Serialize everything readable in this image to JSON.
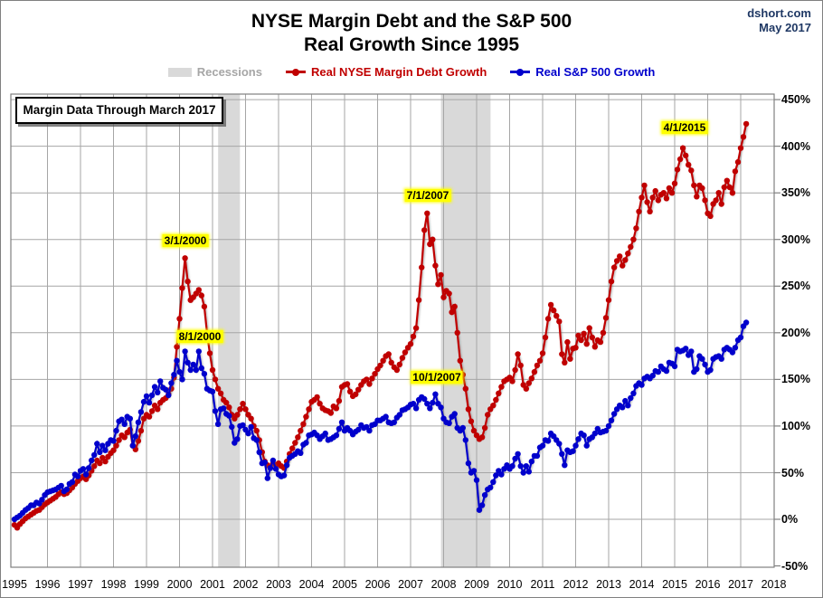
{
  "header": {
    "title_line1": "NYSE Margin Debt and the S&P 500",
    "title_line2": "Real Growth Since 1995",
    "source": "dshort.com",
    "date": "May 2017"
  },
  "annotation_box": "Margin Data Through March 2017",
  "legend": {
    "recessions": {
      "label": "Recessions",
      "swatch_color": "#D9D9D9",
      "text_color": "#A6A6A6"
    },
    "margin_debt": {
      "label": "Real NYSE Margin Debt Growth",
      "color": "#C00000"
    },
    "sp500": {
      "label": "Real S&P 500 Growth",
      "color": "#0000CC"
    }
  },
  "chart_data": {
    "type": "line",
    "title": "NYSE Margin Debt and the S&P 500 Real Growth Since 1995",
    "x_unit": "month",
    "x_start": "1995-01",
    "x_end": "2017-03",
    "ylim": [
      -50,
      450
    ],
    "ytick_step": 50,
    "ytick_labels": [
      "450%",
      "400%",
      "350%",
      "300%",
      "250%",
      "200%",
      "150%",
      "100%",
      "50%",
      "0%",
      "-50%"
    ],
    "xtick_labels": [
      "1995",
      "1996",
      "1997",
      "1998",
      "1999",
      "2000",
      "2001",
      "2002",
      "2003",
      "2004",
      "2005",
      "2006",
      "2007",
      "2008",
      "2009",
      "2010",
      "2011",
      "2012",
      "2013",
      "2014",
      "2015",
      "2016",
      "2017",
      "2018"
    ],
    "grid": true,
    "legend_position": "top",
    "recessions": [
      {
        "name": "2001 recession",
        "start_year": 2001.17,
        "end_year": 2001.83
      },
      {
        "name": "2008-09 recession",
        "start_year": 2007.92,
        "end_year": 2009.42
      }
    ],
    "annotations": [
      {
        "text": "3/1/2000",
        "x": 204,
        "y": 265
      },
      {
        "text": "8/1/2000",
        "x": 220,
        "y": 371
      },
      {
        "text": "7/1/2007",
        "x": 472,
        "y": 215
      },
      {
        "text": "10/1/2007",
        "x": 482,
        "y": 416
      },
      {
        "text": "4/1/2015",
        "x": 756,
        "y": 140
      }
    ],
    "series": [
      {
        "name": "Real NYSE Margin Debt Growth",
        "color": "#C00000",
        "values": [
          -6,
          -9,
          -5,
          -2,
          1,
          3,
          5,
          7,
          9,
          10,
          13,
          16,
          18,
          20,
          22,
          24,
          27,
          29,
          27,
          28,
          31,
          34,
          38,
          41,
          44,
          46,
          43,
          47,
          52,
          57,
          63,
          60,
          66,
          62,
          67,
          71,
          74,
          79,
          85,
          90,
          88,
          93,
          96,
          79,
          75,
          84,
          95,
          108,
          112,
          110,
          116,
          122,
          118,
          125,
          128,
          130,
          134,
          140,
          152,
          185,
          215,
          248,
          280,
          255,
          235,
          238,
          242,
          246,
          240,
          228,
          200,
          178,
          160,
          150,
          140,
          135,
          128,
          125,
          120,
          112,
          108,
          112,
          118,
          124,
          118,
          112,
          108,
          100,
          95,
          85,
          72,
          62,
          58,
          55,
          60,
          58,
          60,
          57,
          55,
          62,
          70,
          76,
          82,
          88,
          95,
          102,
          110,
          118,
          126,
          128,
          131,
          124,
          119,
          117,
          116,
          114,
          121,
          119,
          127,
          142,
          144,
          145,
          137,
          132,
          134,
          139,
          144,
          148,
          150,
          145,
          151,
          156,
          161,
          165,
          170,
          175,
          177,
          168,
          163,
          160,
          166,
          173,
          179,
          184,
          188,
          196,
          205,
          235,
          270,
          310,
          328,
          295,
          300,
          272,
          252,
          262,
          238,
          245,
          242,
          222,
          228,
          200,
          170,
          155,
          140,
          118,
          105,
          95,
          90,
          86,
          88,
          98,
          112,
          118,
          122,
          128,
          135,
          142,
          148,
          150,
          152,
          148,
          160,
          177,
          165,
          144,
          140,
          146,
          151,
          158,
          165,
          170,
          178,
          195,
          215,
          230,
          224,
          218,
          212,
          177,
          168,
          190,
          172,
          183,
          184,
          197,
          192,
          199,
          188,
          205,
          195,
          185,
          192,
          190,
          200,
          216,
          235,
          255,
          270,
          277,
          282,
          272,
          278,
          285,
          292,
          300,
          312,
          330,
          345,
          358,
          340,
          330,
          345,
          352,
          342,
          348,
          350,
          344,
          355,
          350,
          360,
          375,
          386,
          398,
          390,
          380,
          374,
          358,
          346,
          358,
          355,
          342,
          328,
          325,
          338,
          342,
          350,
          338,
          356,
          363,
          356,
          350,
          373,
          383,
          398,
          410,
          424
        ]
      },
      {
        "name": "Real S&P 500 Growth",
        "color": "#0000CC",
        "values": [
          0,
          2,
          4,
          7,
          10,
          12,
          15,
          15,
          18,
          17,
          21,
          26,
          29,
          30,
          31,
          32,
          34,
          36,
          30,
          32,
          38,
          40,
          48,
          46,
          52,
          54,
          48,
          55,
          63,
          69,
          81,
          72,
          79,
          74,
          81,
          85,
          84,
          95,
          105,
          107,
          102,
          110,
          108,
          79,
          89,
          104,
          115,
          126,
          132,
          125,
          133,
          142,
          136,
          148,
          141,
          139,
          133,
          146,
          155,
          170,
          158,
          150,
          180,
          168,
          160,
          166,
          160,
          180,
          162,
          156,
          140,
          138,
          137,
          116,
          102,
          118,
          119,
          113,
          111,
          99,
          82,
          86,
          100,
          101,
          96,
          92,
          99,
          87,
          85,
          72,
          60,
          61,
          44,
          55,
          63,
          54,
          48,
          46,
          47,
          58,
          66,
          68,
          70,
          73,
          71,
          80,
          82,
          90,
          91,
          93,
          90,
          86,
          89,
          92,
          85,
          86,
          88,
          90,
          97,
          104,
          95,
          98,
          95,
          91,
          94,
          96,
          101,
          98,
          99,
          95,
          101,
          102,
          106,
          106,
          108,
          110,
          104,
          103,
          104,
          109,
          112,
          117,
          118,
          120,
          123,
          124,
          119,
          128,
          131,
          129,
          124,
          119,
          125,
          134,
          124,
          120,
          108,
          104,
          103,
          110,
          113,
          98,
          95,
          98,
          85,
          60,
          50,
          52,
          42,
          10,
          15,
          26,
          32,
          34,
          40,
          47,
          52,
          48,
          54,
          58,
          54,
          57,
          65,
          70,
          57,
          50,
          57,
          51,
          62,
          68,
          68,
          77,
          79,
          85,
          84,
          92,
          89,
          85,
          81,
          70,
          58,
          74,
          72,
          73,
          79,
          86,
          92,
          90,
          79,
          86,
          88,
          92,
          97,
          93,
          94,
          95,
          100,
          106,
          113,
          118,
          122,
          120,
          127,
          122,
          130,
          135,
          143,
          146,
          144,
          151,
          153,
          151,
          154,
          159,
          158,
          164,
          161,
          159,
          168,
          167,
          164,
          182,
          180,
          181,
          183,
          176,
          180,
          158,
          161,
          175,
          172,
          166,
          158,
          160,
          172,
          174,
          175,
          172,
          182,
          184,
          182,
          179,
          184,
          192,
          195,
          207,
          211
        ]
      }
    ]
  },
  "colors": {
    "grid": "#A6A6A6",
    "plot_border": "#808080",
    "recession_band": "#D9D9D9",
    "annotation_highlight": "#FFFF00",
    "source_text": "#1F3864"
  }
}
